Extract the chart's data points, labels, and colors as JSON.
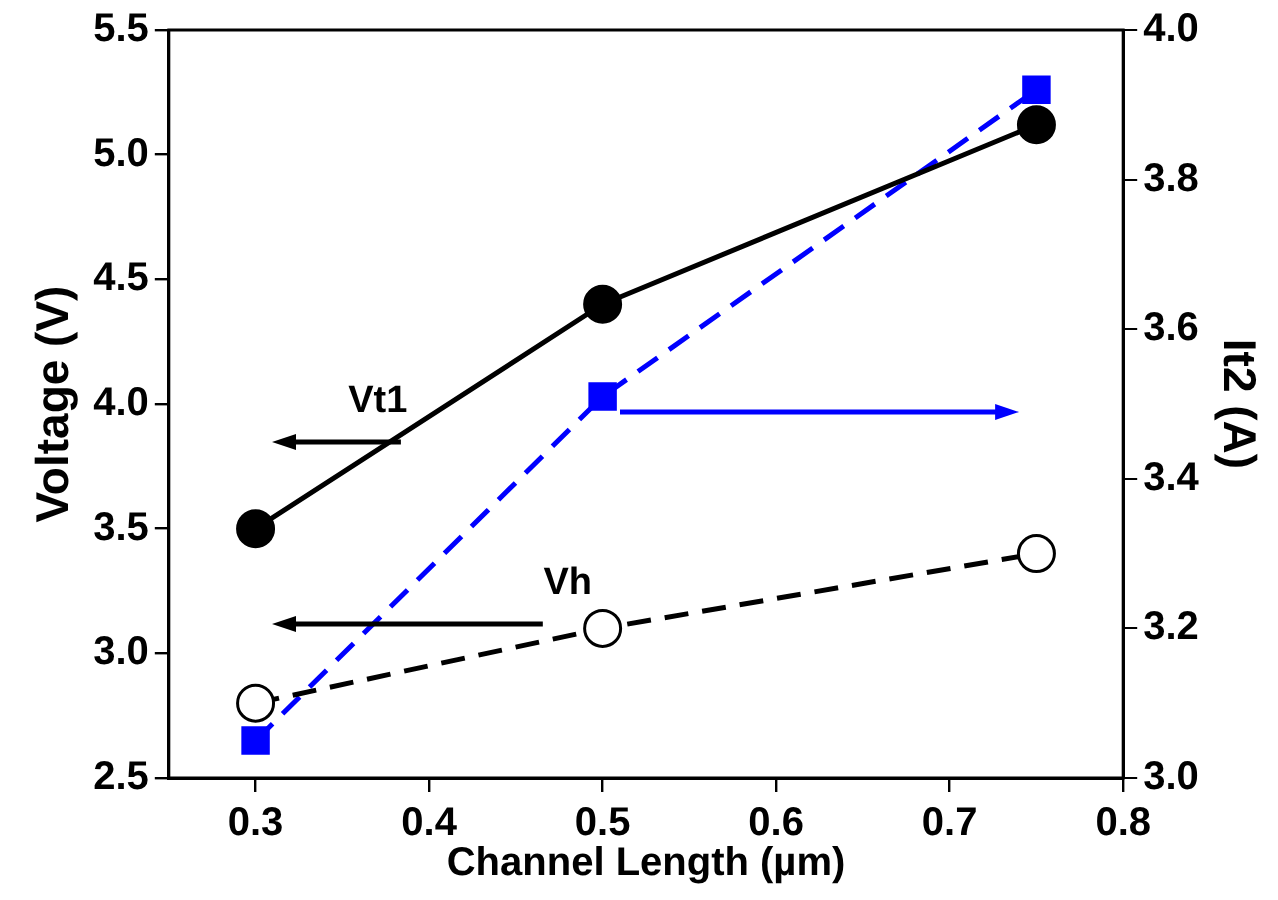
{
  "chart_data": {
    "type": "line",
    "xlabel": "Channel Length (µm)",
    "ylabel": "Voltage (V)",
    "y2label": "It2 (A)",
    "x": [
      0.3,
      0.5,
      0.75
    ],
    "series": [
      {
        "color": "#000000",
        "values": [
          3.5,
          4.4,
          5.12
        ],
        "marker": "circle",
        "line_style": "solid"
      },
      {
        "color": "#000000",
        "values": [
          2.8,
          3.1,
          3.4
        ],
        "marker": "circle",
        "line_style": "dashed"
      },
      {
        "color": "#0000ff",
        "values": [
          3.05,
          3.51,
          3.92
        ],
        "marker": "square",
        "line_style": "dashed",
        "axis": "y2"
      }
    ],
    "xlim": [
      0.25,
      0.8
    ],
    "xticks": [
      0.3,
      0.4,
      0.5,
      0.6,
      0.7,
      0.8
    ],
    "ylim": [
      2.5,
      5.5
    ],
    "yticks": [
      {
        "value": 2.5,
        "label": "2.5"
      },
      {
        "value": 3,
        "label": "3.0"
      },
      {
        "value": 3.5,
        "label": "3.5"
      },
      {
        "value": 4,
        "label": "4.0"
      },
      {
        "value": 4.5,
        "label": "4.5"
      },
      {
        "value": 5,
        "label": "5.0"
      },
      {
        "value": 5.5,
        "label": "5.5"
      }
    ],
    "y2lim": [
      3,
      4
    ],
    "y2ticks": [
      {
        "value": 3,
        "label": "3.0"
      },
      {
        "value": 3.2,
        "label": "3.2"
      },
      {
        "value": 3.4,
        "label": "3.4"
      },
      {
        "value": 3.6,
        "label": "3.6"
      },
      {
        "value": 3.8,
        "label": "3.8"
      },
      {
        "value": 4,
        "label": "4.0"
      }
    ],
    "annotations": [
      "Vt1",
      "Vh"
    ],
    "grid": false,
    "legend": false
  }
}
